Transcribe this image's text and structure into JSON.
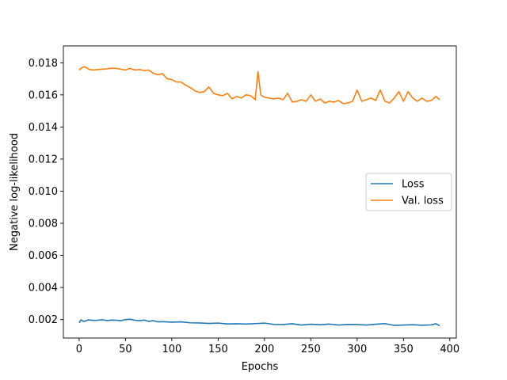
{
  "chart_data": {
    "type": "line",
    "title": "",
    "xlabel": "Epochs",
    "ylabel": "Negative log-likelihood",
    "xlim": [
      -17,
      407
    ],
    "ylim": [
      0.00085,
      0.01905
    ],
    "xticks": [
      0,
      50,
      100,
      150,
      200,
      250,
      300,
      350,
      400
    ],
    "yticks": [
      0.002,
      0.004,
      0.006,
      0.008,
      0.01,
      0.012,
      0.014,
      0.016,
      0.018
    ],
    "xtick_labels": [
      "0",
      "50",
      "100",
      "150",
      "200",
      "250",
      "300",
      "350",
      "400"
    ],
    "ytick_labels": [
      "0.002",
      "0.004",
      "0.006",
      "0.008",
      "0.010",
      "0.012",
      "0.014",
      "0.016",
      "0.018"
    ],
    "grid": false,
    "legend_position": "center-right",
    "series": [
      {
        "name": "Loss",
        "color": "#1f77b4",
        "x": [
          0,
          2,
          5,
          10,
          15,
          20,
          25,
          30,
          35,
          40,
          45,
          50,
          55,
          60,
          65,
          70,
          75,
          80,
          85,
          90,
          100,
          110,
          120,
          130,
          140,
          150,
          160,
          170,
          180,
          190,
          200,
          210,
          220,
          230,
          240,
          250,
          260,
          270,
          280,
          290,
          300,
          310,
          320,
          330,
          340,
          350,
          360,
          370,
          380,
          385,
          389
        ],
        "y": [
          0.0018,
          0.00198,
          0.00188,
          0.00198,
          0.00195,
          0.00196,
          0.00199,
          0.00194,
          0.00197,
          0.00196,
          0.00193,
          0.002,
          0.00202,
          0.00196,
          0.00193,
          0.00197,
          0.00189,
          0.00193,
          0.00186,
          0.00187,
          0.00184,
          0.00186,
          0.0018,
          0.00179,
          0.00176,
          0.00178,
          0.00173,
          0.00174,
          0.00172,
          0.00175,
          0.00178,
          0.0017,
          0.00169,
          0.00174,
          0.00166,
          0.00171,
          0.00168,
          0.00172,
          0.00166,
          0.0017,
          0.00169,
          0.00166,
          0.00171,
          0.00175,
          0.00164,
          0.00166,
          0.00168,
          0.00165,
          0.00167,
          0.00174,
          0.00162
        ]
      },
      {
        "name": "Val. loss",
        "color": "#ff7f0e",
        "x": [
          0,
          2,
          5,
          8,
          10,
          15,
          20,
          25,
          30,
          35,
          40,
          45,
          50,
          55,
          60,
          65,
          70,
          75,
          80,
          85,
          90,
          95,
          100,
          105,
          110,
          115,
          120,
          125,
          130,
          135,
          140,
          145,
          150,
          155,
          160,
          165,
          170,
          175,
          180,
          185,
          190,
          193,
          196,
          200,
          205,
          210,
          215,
          220,
          225,
          230,
          235,
          240,
          245,
          250,
          255,
          260,
          265,
          270,
          275,
          280,
          285,
          290,
          295,
          300,
          305,
          310,
          315,
          320,
          325,
          330,
          335,
          340,
          345,
          350,
          355,
          360,
          365,
          370,
          375,
          380,
          385,
          389
        ],
        "y": [
          0.01755,
          0.01765,
          0.01775,
          0.0177,
          0.0176,
          0.01755,
          0.01758,
          0.0176,
          0.01762,
          0.01766,
          0.01765,
          0.0176,
          0.01755,
          0.01765,
          0.01755,
          0.01758,
          0.01752,
          0.01755,
          0.01735,
          0.01725,
          0.01732,
          0.017,
          0.01695,
          0.0168,
          0.0168,
          0.0166,
          0.01645,
          0.01625,
          0.01615,
          0.0162,
          0.0165,
          0.0161,
          0.016,
          0.01595,
          0.0161,
          0.01575,
          0.0159,
          0.0158,
          0.016,
          0.01595,
          0.0157,
          0.01745,
          0.016,
          0.01585,
          0.0158,
          0.01575,
          0.0158,
          0.0157,
          0.0161,
          0.01555,
          0.0156,
          0.0157,
          0.0156,
          0.016,
          0.0156,
          0.01575,
          0.0155,
          0.0156,
          0.01555,
          0.01565,
          0.01545,
          0.0155,
          0.0156,
          0.0163,
          0.0156,
          0.0157,
          0.0158,
          0.01565,
          0.0163,
          0.0156,
          0.0155,
          0.0158,
          0.0162,
          0.0156,
          0.0162,
          0.0158,
          0.0156,
          0.0158,
          0.0156,
          0.01565,
          0.0159,
          0.0157
        ]
      }
    ]
  }
}
